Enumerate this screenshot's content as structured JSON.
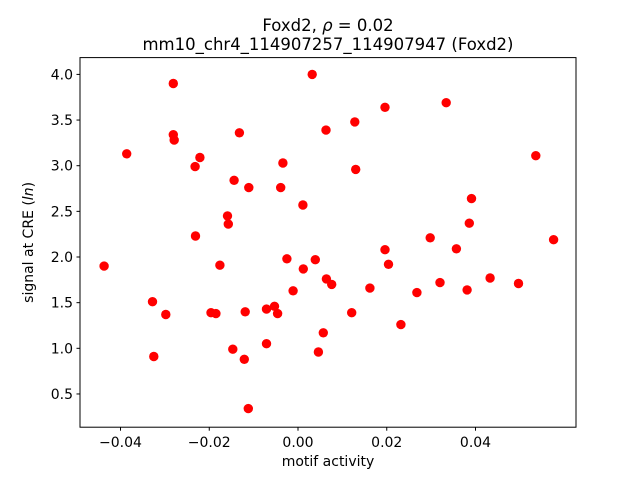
{
  "figure": {
    "title_line1": {
      "prefix": "Foxd2, ",
      "rho": "ρ",
      "suffix": " = 0.02"
    },
    "title_line2": "mm10_chr4_114907257_114907947 (Foxd2)",
    "xlabel": "motif activity",
    "ylabel": {
      "prefix": "signal at CRE (",
      "italic": "ln",
      "suffix": ")"
    }
  },
  "chart_data": {
    "type": "scatter",
    "title": "Foxd2, ρ = 0.02",
    "subtitle": "mm10_chr4_114907257_114907947 (Foxd2)",
    "xlabel": "motif activity",
    "ylabel": "signal at CRE (ln)",
    "legend": "none",
    "grid": false,
    "marker_color": "#ff0000",
    "marker_radius_px": 4.7,
    "xlim": [
      -0.04913,
      0.06265
    ],
    "ylim": [
      0.136,
      4.184
    ],
    "x_ticks": [
      -0.04,
      -0.02,
      0.0,
      0.02,
      0.04
    ],
    "x_tick_labels": [
      "−0.04",
      "−0.02",
      "0.00",
      "0.02",
      "0.04"
    ],
    "y_ticks": [
      0.5,
      1.0,
      1.5,
      2.0,
      2.5,
      3.0,
      3.5,
      4.0
    ],
    "y_tick_labels": [
      "0.5",
      "1.0",
      "1.5",
      "2.0",
      "2.5",
      "3.0",
      "3.5",
      "4.0"
    ],
    "points": [
      [
        -0.0437,
        1.9
      ],
      [
        -0.0386,
        3.13
      ],
      [
        -0.0328,
        1.51
      ],
      [
        -0.0325,
        0.91
      ],
      [
        -0.0298,
        1.37
      ],
      [
        -0.0281,
        3.9
      ],
      [
        -0.0281,
        3.34
      ],
      [
        -0.0279,
        3.28
      ],
      [
        -0.0232,
        2.99
      ],
      [
        -0.0231,
        2.23
      ],
      [
        -0.0221,
        3.09
      ],
      [
        -0.0196,
        1.39
      ],
      [
        -0.0185,
        1.38
      ],
      [
        -0.0176,
        1.91
      ],
      [
        -0.0159,
        2.45
      ],
      [
        -0.0157,
        2.36
      ],
      [
        -0.0147,
        0.99
      ],
      [
        -0.0144,
        2.84
      ],
      [
        -0.0132,
        3.36
      ],
      [
        -0.0121,
        0.88
      ],
      [
        -0.0119,
        1.4
      ],
      [
        -0.0112,
        0.34
      ],
      [
        -0.0111,
        2.76
      ],
      [
        -0.0071,
        1.43
      ],
      [
        -0.0071,
        1.05
      ],
      [
        -0.0053,
        1.46
      ],
      [
        -0.0046,
        1.38
      ],
      [
        -0.0039,
        2.76
      ],
      [
        -0.0034,
        3.03
      ],
      [
        -0.0025,
        1.98
      ],
      [
        -0.0011,
        1.63
      ],
      [
        0.0011,
        2.57
      ],
      [
        0.0012,
        1.87
      ],
      [
        0.0032,
        4.0
      ],
      [
        0.0039,
        1.97
      ],
      [
        0.0046,
        0.96
      ],
      [
        0.0057,
        1.17
      ],
      [
        0.0063,
        3.39
      ],
      [
        0.0064,
        1.76
      ],
      [
        0.0076,
        1.7
      ],
      [
        0.0121,
        1.39
      ],
      [
        0.0128,
        3.48
      ],
      [
        0.013,
        2.96
      ],
      [
        0.0162,
        1.66
      ],
      [
        0.0196,
        3.64
      ],
      [
        0.0196,
        2.08
      ],
      [
        0.0204,
        1.92
      ],
      [
        0.0232,
        1.26
      ],
      [
        0.0268,
        1.61
      ],
      [
        0.0298,
        2.21
      ],
      [
        0.032,
        1.72
      ],
      [
        0.0334,
        3.69
      ],
      [
        0.0357,
        2.09
      ],
      [
        0.0381,
        1.64
      ],
      [
        0.0386,
        2.37
      ],
      [
        0.0391,
        2.64
      ],
      [
        0.0433,
        1.77
      ],
      [
        0.0497,
        1.71
      ],
      [
        0.0536,
        3.11
      ],
      [
        0.0576,
        2.19
      ]
    ]
  }
}
